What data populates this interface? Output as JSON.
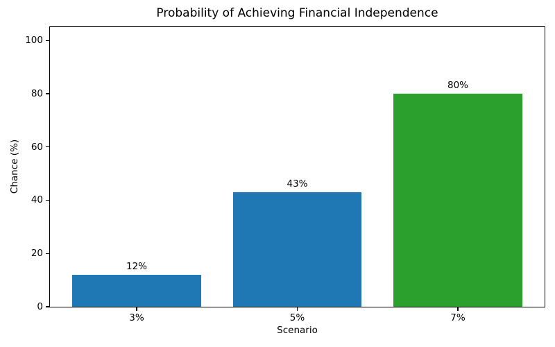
{
  "chart_data": {
    "type": "bar",
    "title": "Probability of Achieving Financial Independence",
    "xlabel": "Scenario",
    "ylabel": "Chance (%)",
    "categories": [
      "3%",
      "5%",
      "7%"
    ],
    "values": [
      12,
      43,
      80
    ],
    "bar_labels": [
      "12%",
      "43%",
      "80%"
    ],
    "bar_colors": [
      "#1f77b4",
      "#1f77b4",
      "#2ca02c"
    ],
    "yticks": [
      0,
      20,
      40,
      60,
      80,
      100
    ],
    "ylim": [
      0,
      105
    ],
    "bar_width_fraction": 0.8,
    "grid": false,
    "legend_position": "none"
  },
  "colors": {
    "background": "#ffffff",
    "axis": "#000000",
    "text": "#000000",
    "blue_bar": "#1f77b4",
    "green_bar": "#2ca02c"
  }
}
